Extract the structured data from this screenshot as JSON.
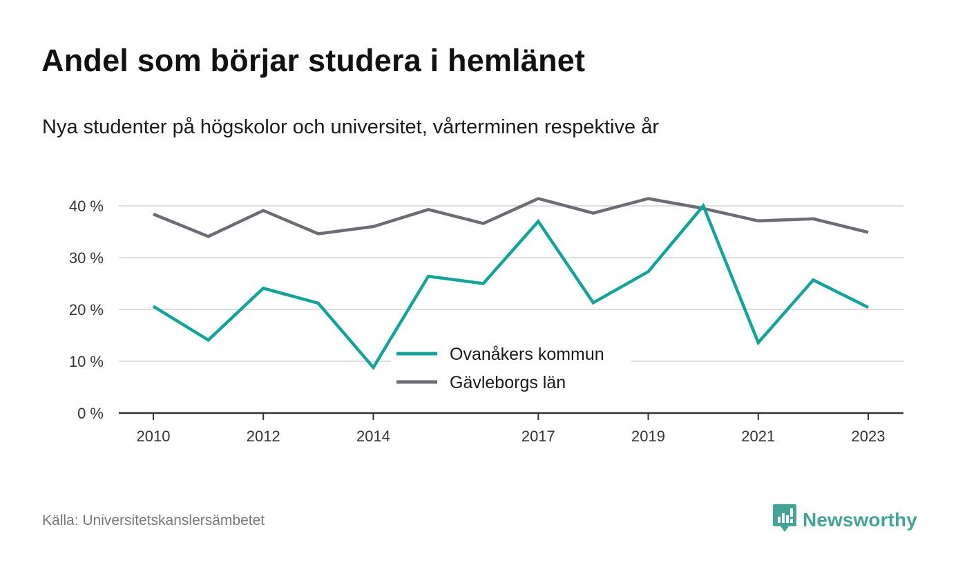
{
  "title": "Andel som börjar studera i hemlänet",
  "subtitle": "Nya studenter på högskolor och universitet, vårterminen respektive år",
  "source": "Källa: Universitetskanslersämbetet",
  "brand": {
    "name": "Newsworthy",
    "icon": "newsworthy-logo-icon",
    "color": "#43a397"
  },
  "chart_data": {
    "type": "line",
    "x": [
      2010,
      2011,
      2012,
      2013,
      2014,
      2015,
      2016,
      2017,
      2018,
      2019,
      2020,
      2021,
      2022,
      2023
    ],
    "x_ticks": [
      "2010",
      "2012",
      "2014",
      "2017",
      "2019",
      "2021",
      "2023"
    ],
    "y_ticks": [
      "0 %",
      "10 %",
      "20 %",
      "30 %",
      "40 %"
    ],
    "ylim": [
      0,
      40
    ],
    "grid": true,
    "legend_position": "bottom-center",
    "series": [
      {
        "name": "Ovanåkers kommun",
        "color": "#12a39a",
        "values": [
          20.6,
          14.1,
          24.1,
          21.2,
          8.8,
          26.4,
          25.0,
          37.0,
          21.3,
          27.3,
          40.0,
          13.6,
          25.7,
          20.4
        ]
      },
      {
        "name": "Gävleborgs län",
        "color": "#6d6c74",
        "values": [
          38.4,
          34.1,
          39.1,
          34.6,
          36.0,
          39.3,
          36.6,
          41.4,
          38.6,
          41.4,
          39.5,
          37.1,
          37.5,
          34.9
        ]
      }
    ]
  }
}
